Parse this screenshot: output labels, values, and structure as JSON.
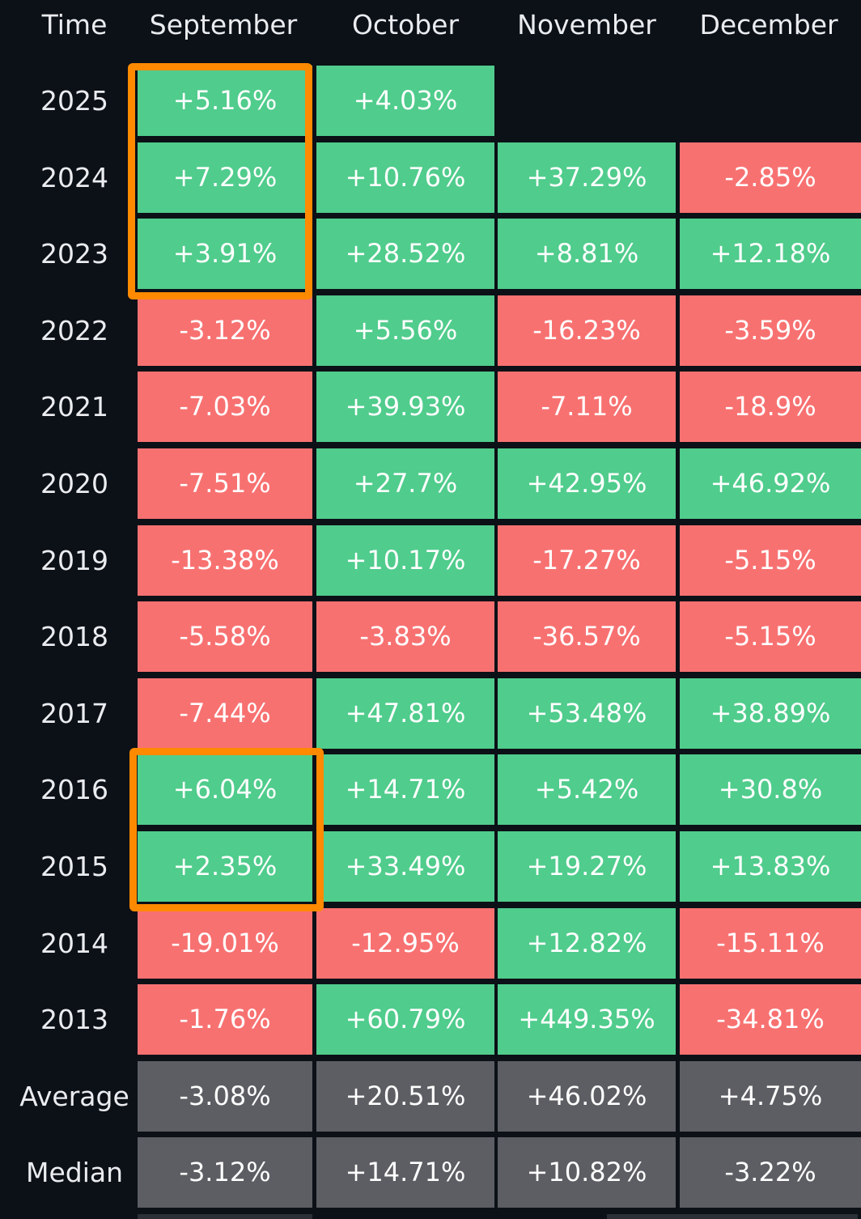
{
  "header": {
    "time": "Time",
    "months": [
      "September",
      "October",
      "November",
      "December"
    ]
  },
  "rows": [
    {
      "year": "2025",
      "cells": [
        "+5.16%",
        "+4.03%",
        "",
        ""
      ]
    },
    {
      "year": "2024",
      "cells": [
        "+7.29%",
        "+10.76%",
        "+37.29%",
        "-2.85%"
      ]
    },
    {
      "year": "2023",
      "cells": [
        "+3.91%",
        "+28.52%",
        "+8.81%",
        "+12.18%"
      ]
    },
    {
      "year": "2022",
      "cells": [
        "-3.12%",
        "+5.56%",
        "-16.23%",
        "-3.59%"
      ]
    },
    {
      "year": "2021",
      "cells": [
        "-7.03%",
        "+39.93%",
        "-7.11%",
        "-18.9%"
      ]
    },
    {
      "year": "2020",
      "cells": [
        "-7.51%",
        "+27.7%",
        "+42.95%",
        "+46.92%"
      ]
    },
    {
      "year": "2019",
      "cells": [
        "-13.38%",
        "+10.17%",
        "-17.27%",
        "-5.15%"
      ]
    },
    {
      "year": "2018",
      "cells": [
        "-5.58%",
        "-3.83%",
        "-36.57%",
        "-5.15%"
      ]
    },
    {
      "year": "2017",
      "cells": [
        "-7.44%",
        "+47.81%",
        "+53.48%",
        "+38.89%"
      ]
    },
    {
      "year": "2016",
      "cells": [
        "+6.04%",
        "+14.71%",
        "+5.42%",
        "+30.8%"
      ]
    },
    {
      "year": "2015",
      "cells": [
        "+2.35%",
        "+33.49%",
        "+19.27%",
        "+13.83%"
      ]
    },
    {
      "year": "2014",
      "cells": [
        "-19.01%",
        "-12.95%",
        "+12.82%",
        "-15.11%"
      ]
    },
    {
      "year": "2013",
      "cells": [
        "-1.76%",
        "+60.79%",
        "+449.35%",
        "-34.81%"
      ]
    }
  ],
  "summary": [
    {
      "label": "Average",
      "cells": [
        "-3.08%",
        "+20.51%",
        "+46.02%",
        "+4.75%"
      ]
    },
    {
      "label": "Median",
      "cells": [
        "-3.12%",
        "+14.71%",
        "+10.82%",
        "-3.22%"
      ]
    }
  ],
  "highlights": [
    {
      "column": "September",
      "years": [
        "2025",
        "2024",
        "2023"
      ]
    },
    {
      "column": "September",
      "years": [
        "2016",
        "2015"
      ]
    }
  ],
  "colors": {
    "background": "#0c1017",
    "positive": "#50cc8c",
    "negative": "#f87171",
    "summary": "#5c5e63",
    "highlight": "#ff8a00",
    "text": "#eaecef"
  }
}
